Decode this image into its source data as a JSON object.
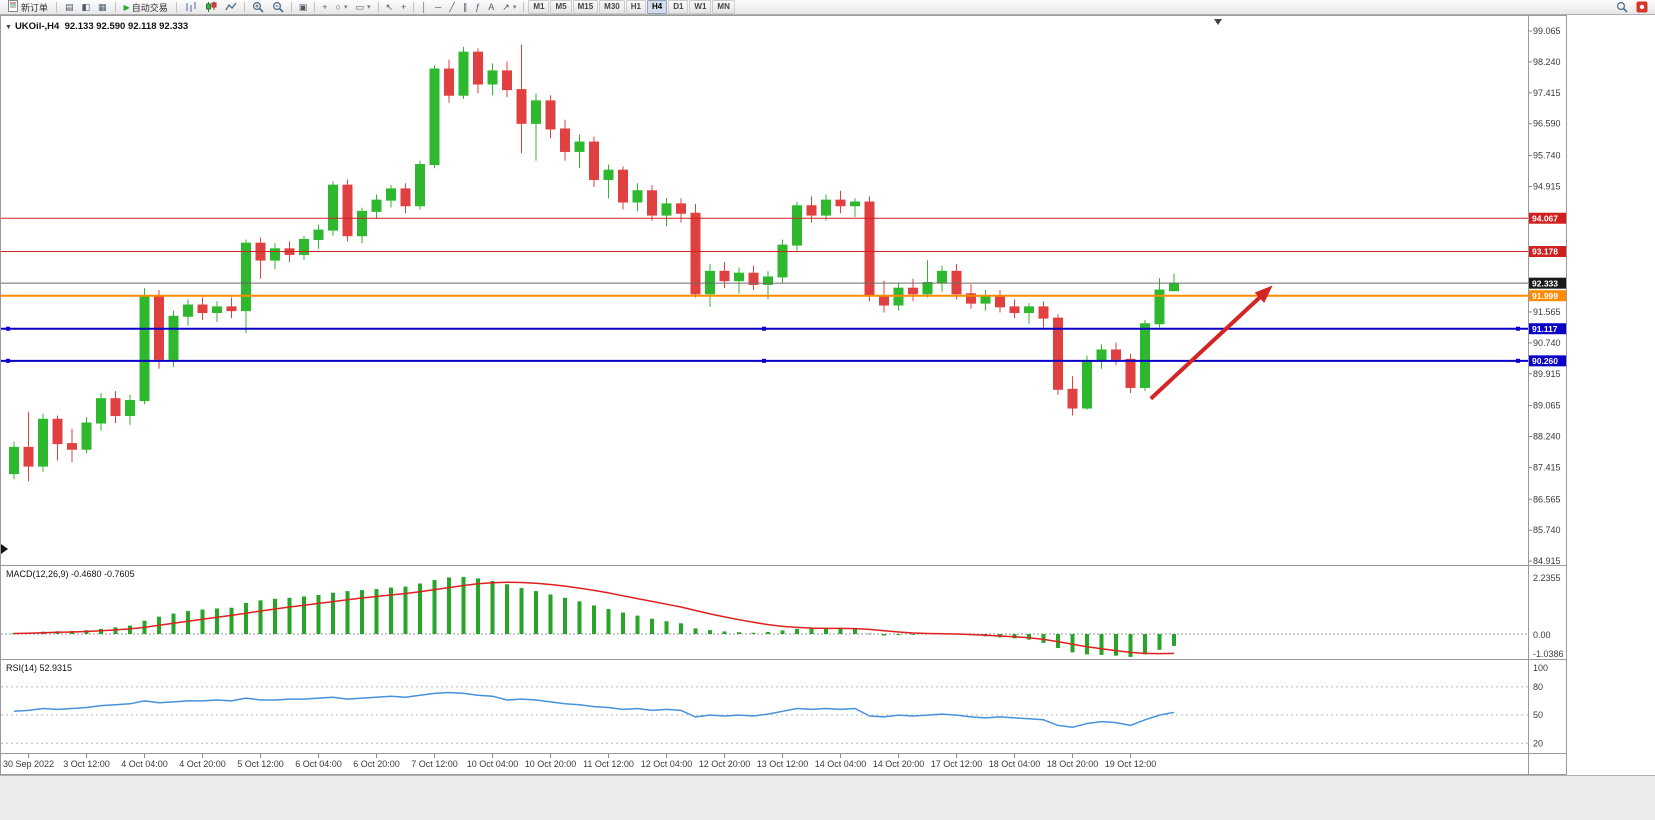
{
  "toolbar": {
    "new_order_label": "新订单",
    "autotrading_label": "自动交易",
    "left_icons": [
      "market-watch-icon",
      "data-window-icon",
      "navigator-icon"
    ],
    "icon_groups": [
      [
        "chart-bars-icon",
        "chart-candles-icon",
        "chart-line-icon"
      ],
      [
        "zoom-in-icon",
        "zoom-out-icon"
      ],
      [
        "tile-windows-icon"
      ],
      [
        "new-chart-icon",
        "period-icon",
        "template-icon"
      ],
      [
        "cursor-icon",
        "crosshair-icon"
      ],
      [
        "vertical-line-icon",
        "horizontal-line-icon",
        "trendline-icon",
        "channel-icon",
        "fibonacci-icon",
        "text-icon",
        "arrows-icon"
      ]
    ],
    "timeframes": [
      "M1",
      "M5",
      "M15",
      "M30",
      "H1",
      "H4",
      "D1",
      "W1",
      "MN"
    ],
    "active_timeframe": "H4",
    "right_icons": [
      "search-icon",
      "community-icon"
    ]
  },
  "chart_data": [
    {
      "type": "candlestick",
      "title": "UKOil-,H4",
      "ohlc_label": "92.133 92.590 92.118 92.333",
      "current": {
        "open": 92.133,
        "high": 92.59,
        "low": 92.118,
        "close": 92.333
      },
      "up_color": "#2eb82e",
      "down_color": "#e04040",
      "y_ticks": [
        "99.065",
        "98.240",
        "97.415",
        "96.590",
        "95.740",
        "94.915",
        "91.565",
        "90.740",
        "89.915",
        "89.065",
        "88.240",
        "87.415",
        "86.565",
        "85.740",
        "84.915"
      ],
      "price_lines": [
        {
          "label": "94.067",
          "color": "#d02020",
          "width": 1
        },
        {
          "label": "93.178",
          "color": "#d02020",
          "width": 1
        },
        {
          "label": "92.333",
          "color": "#6a6a6a",
          "width": 1,
          "tag_bg": "#1a1a1a",
          "role": "current-price"
        },
        {
          "label": "91.999",
          "color": "#ff8c00",
          "width": 2
        },
        {
          "label": "91.117",
          "color": "#0a00c8",
          "width": 2,
          "handles": true
        },
        {
          "label": "90.260",
          "color": "#0a00c8",
          "width": 2,
          "handles": true
        }
      ],
      "time_labels": [
        "30 Sep 2022",
        "3 Oct 12:00",
        "4 Oct 04:00",
        "4 Oct 20:00",
        "5 Oct 12:00",
        "6 Oct 04:00",
        "6 Oct 20:00",
        "7 Oct 12:00",
        "10 Oct 04:00",
        "10 Oct 20:00",
        "11 Oct 12:00",
        "12 Oct 04:00",
        "12 Oct 20:00",
        "13 Oct 12:00",
        "14 Oct 04:00",
        "14 Oct 20:00",
        "17 Oct 12:00",
        "18 Oct 04:00",
        "18 Oct 20:00",
        "19 Oct 12:00"
      ],
      "candles": [
        [
          87.25,
          88.1,
          87.1,
          87.95
        ],
        [
          87.95,
          88.9,
          87.05,
          87.45
        ],
        [
          87.45,
          88.85,
          87.3,
          88.7
        ],
        [
          88.7,
          88.8,
          87.6,
          88.05
        ],
        [
          88.05,
          88.45,
          87.55,
          87.9
        ],
        [
          87.9,
          88.75,
          87.8,
          88.6
        ],
        [
          88.6,
          89.4,
          88.4,
          89.25
        ],
        [
          89.25,
          89.45,
          88.6,
          88.8
        ],
        [
          88.8,
          89.35,
          88.55,
          89.2
        ],
        [
          89.2,
          92.2,
          89.1,
          92.0
        ],
        [
          92.0,
          92.15,
          90.05,
          90.3
        ],
        [
          90.3,
          91.6,
          90.1,
          91.45
        ],
        [
          91.45,
          91.9,
          91.2,
          91.75
        ],
        [
          91.75,
          91.95,
          91.35,
          91.55
        ],
        [
          91.55,
          91.85,
          91.3,
          91.7
        ],
        [
          91.7,
          91.95,
          91.4,
          91.6
        ],
        [
          91.6,
          93.5,
          91.0,
          93.4
        ],
        [
          93.4,
          93.55,
          92.45,
          92.95
        ],
        [
          92.95,
          93.4,
          92.7,
          93.25
        ],
        [
          93.25,
          93.45,
          92.9,
          93.1
        ],
        [
          93.1,
          93.6,
          92.95,
          93.5
        ],
        [
          93.5,
          93.9,
          93.25,
          93.75
        ],
        [
          93.75,
          95.05,
          93.6,
          94.95
        ],
        [
          94.95,
          95.1,
          93.45,
          93.6
        ],
        [
          93.6,
          94.35,
          93.4,
          94.25
        ],
        [
          94.25,
          94.7,
          94.05,
          94.55
        ],
        [
          94.55,
          94.95,
          94.35,
          94.85
        ],
        [
          94.85,
          95.0,
          94.2,
          94.4
        ],
        [
          94.4,
          95.6,
          94.3,
          95.5
        ],
        [
          95.5,
          98.15,
          95.4,
          98.05
        ],
        [
          98.05,
          98.3,
          97.15,
          97.35
        ],
        [
          97.35,
          98.64,
          97.25,
          98.5
        ],
        [
          98.5,
          98.6,
          97.4,
          97.65
        ],
        [
          97.65,
          98.2,
          97.35,
          98.0
        ],
        [
          98.0,
          98.25,
          97.3,
          97.5
        ],
        [
          97.5,
          98.7,
          95.8,
          96.6
        ],
        [
          96.6,
          97.4,
          95.6,
          97.2
        ],
        [
          97.2,
          97.35,
          96.2,
          96.45
        ],
        [
          96.45,
          96.7,
          95.6,
          95.85
        ],
        [
          95.85,
          96.3,
          95.4,
          96.1
        ],
        [
          96.1,
          96.25,
          94.9,
          95.1
        ],
        [
          95.1,
          95.5,
          94.6,
          95.35
        ],
        [
          95.35,
          95.45,
          94.3,
          94.5
        ],
        [
          94.5,
          95.0,
          94.25,
          94.8
        ],
        [
          94.8,
          94.95,
          94.0,
          94.15
        ],
        [
          94.15,
          94.6,
          93.85,
          94.45
        ],
        [
          94.45,
          94.6,
          93.95,
          94.2
        ],
        [
          94.2,
          94.45,
          91.95,
          92.05
        ],
        [
          92.05,
          92.85,
          91.7,
          92.65
        ],
        [
          92.65,
          92.9,
          92.2,
          92.4
        ],
        [
          92.4,
          92.75,
          92.05,
          92.6
        ],
        [
          92.6,
          92.8,
          92.15,
          92.3
        ],
        [
          92.3,
          92.65,
          91.9,
          92.5
        ],
        [
          92.5,
          93.5,
          92.35,
          93.35
        ],
        [
          93.35,
          94.5,
          93.2,
          94.4
        ],
        [
          94.4,
          94.65,
          93.95,
          94.15
        ],
        [
          94.15,
          94.7,
          94.0,
          94.55
        ],
        [
          94.55,
          94.8,
          94.2,
          94.4
        ],
        [
          94.4,
          94.6,
          94.1,
          94.5
        ],
        [
          94.5,
          94.65,
          91.85,
          92.0
        ],
        [
          92.0,
          92.4,
          91.55,
          91.75
        ],
        [
          91.75,
          92.35,
          91.6,
          92.2
        ],
        [
          92.2,
          92.45,
          91.85,
          92.05
        ],
        [
          92.05,
          92.95,
          91.95,
          92.35
        ],
        [
          92.35,
          92.8,
          92.1,
          92.65
        ],
        [
          92.65,
          92.85,
          91.9,
          92.05
        ],
        [
          92.05,
          92.3,
          91.65,
          91.8
        ],
        [
          91.8,
          92.15,
          91.6,
          92.0
        ],
        [
          92.0,
          92.15,
          91.55,
          91.7
        ],
        [
          91.7,
          91.9,
          91.4,
          91.55
        ],
        [
          91.55,
          91.8,
          91.25,
          91.7
        ],
        [
          91.7,
          91.85,
          91.15,
          91.4
        ],
        [
          91.4,
          91.5,
          89.35,
          89.5
        ],
        [
          89.5,
          89.85,
          88.8,
          89.0
        ],
        [
          89.0,
          90.4,
          88.95,
          90.25
        ],
        [
          90.25,
          90.7,
          90.05,
          90.55
        ],
        [
          90.55,
          90.75,
          90.15,
          90.3
        ],
        [
          90.3,
          90.45,
          89.4,
          89.55
        ],
        [
          89.55,
          91.35,
          89.45,
          91.25
        ],
        [
          91.25,
          92.47,
          91.15,
          92.15
        ],
        [
          92.133,
          92.59,
          92.118,
          92.333
        ]
      ]
    },
    {
      "type": "bar",
      "name": "MACD",
      "label": "MACD(12,26,9) -0.4680 -0.7605",
      "macd_value": -0.468,
      "signal_value": -0.7605,
      "axis_labels": [
        "2.2355",
        "0.00",
        "-1.0386"
      ],
      "hist_color": "#28a428",
      "signal_color": "#e02020",
      "histogram": [
        0.04,
        0.06,
        0.09,
        0.11,
        0.12,
        0.15,
        0.2,
        0.26,
        0.33,
        0.52,
        0.68,
        0.8,
        0.9,
        0.96,
        1.0,
        1.03,
        1.22,
        1.32,
        1.38,
        1.42,
        1.47,
        1.53,
        1.62,
        1.68,
        1.72,
        1.76,
        1.82,
        1.86,
        1.98,
        2.12,
        2.22,
        2.24,
        2.18,
        2.08,
        1.95,
        1.8,
        1.68,
        1.55,
        1.42,
        1.28,
        1.12,
        0.98,
        0.84,
        0.72,
        0.6,
        0.5,
        0.42,
        0.22,
        0.15,
        0.1,
        0.07,
        0.05,
        0.08,
        0.14,
        0.2,
        0.22,
        0.23,
        0.22,
        0.2,
        0.02,
        -0.06,
        -0.04,
        -0.03,
        0.0,
        0.02,
        0.0,
        -0.05,
        -0.09,
        -0.13,
        -0.17,
        -0.22,
        -0.35,
        -0.55,
        -0.72,
        -0.8,
        -0.82,
        -0.85,
        -0.9,
        -0.8,
        -0.62,
        -0.468
      ],
      "signal": [
        0.02,
        0.03,
        0.05,
        0.07,
        0.08,
        0.1,
        0.13,
        0.16,
        0.2,
        0.26,
        0.34,
        0.42,
        0.5,
        0.58,
        0.66,
        0.73,
        0.81,
        0.9,
        0.98,
        1.06,
        1.13,
        1.2,
        1.27,
        1.34,
        1.41,
        1.47,
        1.53,
        1.59,
        1.66,
        1.74,
        1.82,
        1.9,
        1.97,
        2.01,
        2.03,
        2.02,
        1.99,
        1.94,
        1.88,
        1.8,
        1.71,
        1.61,
        1.5,
        1.39,
        1.28,
        1.17,
        1.06,
        0.92,
        0.79,
        0.67,
        0.56,
        0.46,
        0.37,
        0.3,
        0.26,
        0.23,
        0.22,
        0.22,
        0.21,
        0.18,
        0.13,
        0.08,
        0.04,
        0.02,
        0.01,
        0.0,
        -0.02,
        -0.05,
        -0.08,
        -0.11,
        -0.15,
        -0.21,
        -0.3,
        -0.4,
        -0.5,
        -0.58,
        -0.65,
        -0.72,
        -0.76,
        -0.77,
        -0.7605
      ]
    },
    {
      "type": "line",
      "name": "RSI",
      "label": "RSI(14) 52.9315",
      "value": 52.9315,
      "axis_labels": [
        "100",
        "80",
        "50",
        "20"
      ],
      "levels": [
        80,
        50,
        20
      ],
      "line_color": "#4692dc",
      "values": [
        54,
        55,
        57,
        56,
        57,
        58,
        60,
        61,
        62,
        65,
        63,
        64,
        65,
        65,
        66,
        65,
        68,
        66,
        66,
        67,
        67,
        68,
        69,
        67,
        68,
        69,
        70,
        69,
        71,
        73,
        74,
        73,
        71,
        70,
        66,
        67,
        66,
        64,
        62,
        61,
        59,
        58,
        56,
        57,
        55,
        56,
        55,
        48,
        50,
        49,
        50,
        49,
        51,
        54,
        57,
        56,
        57,
        56,
        57,
        49,
        48,
        50,
        49,
        50,
        51,
        50,
        48,
        47,
        48,
        47,
        46,
        45,
        39,
        37,
        41,
        43,
        42,
        39,
        45,
        50,
        52.9315
      ]
    }
  ],
  "annotations": [
    {
      "type": "trend-arrow",
      "name": "red-up-arrow",
      "color": "#d42424",
      "from_bar": 78.4,
      "from_price": 89.25,
      "to_bar": 86.6,
      "to_price": 92.2
    }
  ]
}
